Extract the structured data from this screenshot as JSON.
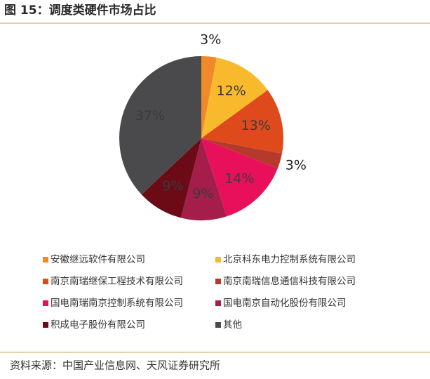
{
  "chart_data": {
    "type": "pie",
    "title": "图 15：调度类硬件市场占比",
    "categories": [
      "安徽继远软件有限公司",
      "北京科东电力控制系统有限公司",
      "南京南瑞继保工程技术有限公司",
      "南京南瑞信息通信科技有限公司",
      "国电南瑞南京控制系统有限公司",
      "国电南京自动化股份有限公司",
      "积成电子股份有限公司",
      "其他"
    ],
    "values": [
      3,
      12,
      13,
      3,
      14,
      9,
      9,
      37
    ],
    "value_labels": [
      "3%",
      "12%",
      "13%",
      "3%",
      "14%",
      "9%",
      "9%",
      "37%"
    ],
    "colors": [
      "#f0892a",
      "#f8ba2c",
      "#df4a1d",
      "#b53a2b",
      "#e8105a",
      "#a51d4b",
      "#6c0b16",
      "#4a4a4d"
    ],
    "source": "资料来源：中国产业信息网、天风证券研究所"
  }
}
